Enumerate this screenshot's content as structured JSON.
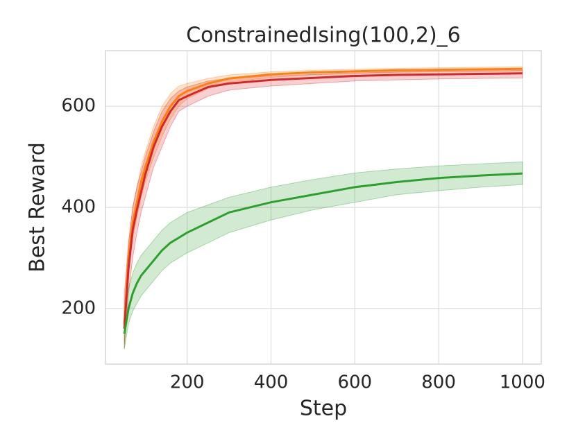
{
  "chart_data": {
    "type": "line",
    "title": "ConstrainedIsing(100,2)_6",
    "x_label": "Step",
    "y_label": "Best Reward",
    "x": [
      50,
      60,
      70,
      80,
      90,
      100,
      120,
      140,
      160,
      180,
      200,
      250,
      300,
      400,
      500,
      600,
      700,
      800,
      900,
      1000
    ],
    "series": [
      {
        "color": "#ff7f0e",
        "values": [
          170,
          300,
          370,
          410,
          450,
          480,
          530,
          570,
          600,
          620,
          630,
          645,
          655,
          663,
          667,
          669,
          671,
          672,
          673,
          674
        ],
        "upper": [
          200,
          330,
          400,
          440,
          480,
          510,
          560,
          600,
          625,
          640,
          645,
          655,
          662,
          668,
          671,
          673,
          675,
          676,
          677,
          678
        ],
        "lower": [
          130,
          270,
          340,
          380,
          420,
          450,
          500,
          540,
          575,
          600,
          615,
          635,
          648,
          657,
          662,
          665,
          667,
          668,
          669,
          670
        ]
      },
      {
        "color": "#d62728",
        "values": [
          160,
          280,
          355,
          395,
          430,
          465,
          520,
          560,
          590,
          612,
          620,
          638,
          645,
          652,
          656,
          660,
          662,
          663,
          664,
          665
        ],
        "upper": [
          230,
          330,
          400,
          440,
          470,
          500,
          550,
          590,
          615,
          630,
          638,
          650,
          655,
          660,
          663,
          666,
          668,
          669,
          670,
          671
        ],
        "lower": [
          120,
          230,
          300,
          350,
          390,
          420,
          480,
          520,
          560,
          590,
          600,
          620,
          632,
          640,
          645,
          650,
          652,
          654,
          655,
          656
        ]
      },
      {
        "color": "#2ca02c",
        "values": [
          150,
          200,
          230,
          250,
          265,
          275,
          295,
          315,
          330,
          340,
          350,
          370,
          390,
          410,
          425,
          440,
          450,
          458,
          463,
          467
        ],
        "upper": [
          190,
          240,
          270,
          290,
          305,
          315,
          335,
          355,
          370,
          380,
          390,
          405,
          420,
          440,
          455,
          468,
          476,
          482,
          486,
          490
        ],
        "lower": [
          120,
          170,
          195,
          210,
          225,
          235,
          255,
          275,
          290,
          300,
          310,
          330,
          350,
          375,
          395,
          410,
          425,
          433,
          440,
          445
        ]
      }
    ],
    "xlim": [
      5,
      1045
    ],
    "xticks": [
      200,
      400,
      600,
      800,
      1000
    ],
    "ylim": [
      90,
      710
    ],
    "yticks": [
      200,
      400,
      600
    ],
    "grid": true
  }
}
